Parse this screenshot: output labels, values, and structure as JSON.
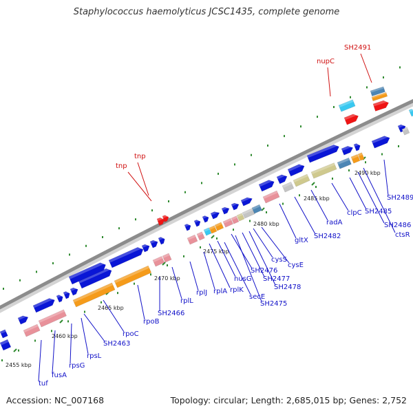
{
  "title": "Staphylococcus haemolyticus JCSC1435, complete genome",
  "footer": {
    "accession": "Accession: NC_007168",
    "summary": "Topology: circular; Length: 2,685,015 bp; Genes: 2,752"
  },
  "colors": {
    "backbone": "#8c8c8c",
    "gene_forward": "#0a16d6",
    "gene_rrna": "#e8919a",
    "gene_orange": "#f59b1a",
    "gene_red": "#ef1414",
    "gene_cyan": "#39c8f0",
    "gene_khaki": "#cfc98e",
    "gene_steel": "#4c86b4",
    "gene_gray": "#c4c4c4",
    "tick": "#2f8a2f",
    "label_blue": "#1010c8",
    "label_red": "#d01010"
  },
  "scale_labels": [
    "2455 kbp",
    "2460 kbp",
    "2465 kbp",
    "2470 kbp",
    "2475 kbp",
    "2480 kbp",
    "2485 kbp",
    "2490 kbp"
  ],
  "gene_labels": [
    {
      "text": "tuf",
      "color": "blue"
    },
    {
      "text": "fusA",
      "color": "blue"
    },
    {
      "text": "rpsG",
      "color": "blue"
    },
    {
      "text": "rpsL",
      "color": "blue"
    },
    {
      "text": "SH2463",
      "color": "blue"
    },
    {
      "text": "rpoC",
      "color": "blue"
    },
    {
      "text": "rpoB",
      "color": "blue"
    },
    {
      "text": "SH2466",
      "color": "blue"
    },
    {
      "text": "rplL",
      "color": "blue"
    },
    {
      "text": "rplJ",
      "color": "blue"
    },
    {
      "text": "rplA",
      "color": "blue"
    },
    {
      "text": "rplK",
      "color": "blue"
    },
    {
      "text": "nusG",
      "color": "blue"
    },
    {
      "text": "secE",
      "color": "blue"
    },
    {
      "text": "SH2476",
      "color": "blue"
    },
    {
      "text": "SH2475",
      "color": "blue"
    },
    {
      "text": "SH2477",
      "color": "blue"
    },
    {
      "text": "SH2478",
      "color": "blue"
    },
    {
      "text": "cysS",
      "color": "blue"
    },
    {
      "text": "cysE",
      "color": "blue"
    },
    {
      "text": "gltX",
      "color": "blue"
    },
    {
      "text": "SH2482",
      "color": "blue"
    },
    {
      "text": "radA",
      "color": "blue"
    },
    {
      "text": "clpC",
      "color": "blue"
    },
    {
      "text": "SH2485",
      "color": "blue"
    },
    {
      "text": "SH2486",
      "color": "blue"
    },
    {
      "text": "ctsR",
      "color": "blue"
    },
    {
      "text": "SH2489",
      "color": "blue"
    },
    {
      "text": "tnp",
      "color": "red"
    },
    {
      "text": "tnp",
      "color": "red"
    },
    {
      "text": "nupC",
      "color": "red"
    },
    {
      "text": "SH2491",
      "color": "red"
    }
  ]
}
